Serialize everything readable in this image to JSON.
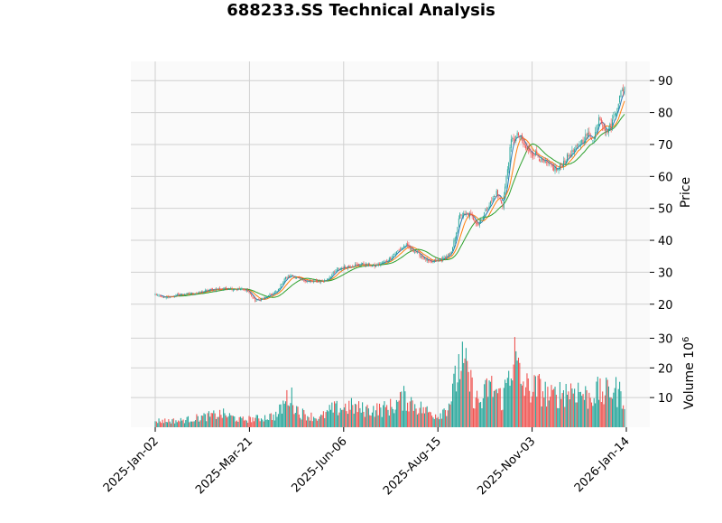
{
  "chart_data": [
    {
      "type": "candlestick",
      "title": "688233.SS Technical Analysis",
      "ylabel": "Price",
      "ylim": [
        14,
        96
      ],
      "yticks": [
        20,
        30,
        40,
        50,
        60,
        70,
        80,
        90
      ],
      "xticks": [
        "2025-Jan-02",
        "2025-Mar-21",
        "2025-Jun-06",
        "2025-Aug-15",
        "2025-Nov-03",
        "2026-Jan-14"
      ],
      "grid": true,
      "up_color": "#26a69a",
      "down_color": "#ef5350",
      "ma_colors": [
        "#1f77b4",
        "#ff7f0e",
        "#2ca02c"
      ],
      "price_keypoints": [
        [
          0,
          23
        ],
        [
          8,
          22
        ],
        [
          20,
          23
        ],
        [
          35,
          23.5
        ],
        [
          45,
          24.5
        ],
        [
          60,
          25
        ],
        [
          75,
          24.5
        ],
        [
          82,
          21
        ],
        [
          90,
          22
        ],
        [
          100,
          24
        ],
        [
          106,
          28
        ],
        [
          112,
          29
        ],
        [
          120,
          27.5
        ],
        [
          130,
          27
        ],
        [
          140,
          27.5
        ],
        [
          150,
          31
        ],
        [
          160,
          32
        ],
        [
          170,
          32.5
        ],
        [
          180,
          32
        ],
        [
          190,
          33.5
        ],
        [
          197,
          36
        ],
        [
          205,
          38.5
        ],
        [
          215,
          36
        ],
        [
          225,
          33
        ],
        [
          235,
          34
        ],
        [
          243,
          36
        ],
        [
          250,
          48
        ],
        [
          258,
          48
        ],
        [
          265,
          45
        ],
        [
          272,
          50
        ],
        [
          280,
          55
        ],
        [
          285,
          51
        ],
        [
          292,
          71
        ],
        [
          298,
          73
        ],
        [
          305,
          68
        ],
        [
          312,
          67
        ],
        [
          320,
          64
        ],
        [
          330,
          62
        ],
        [
          338,
          66
        ],
        [
          346,
          69
        ],
        [
          354,
          73
        ],
        [
          360,
          72
        ],
        [
          364,
          79
        ],
        [
          370,
          74
        ],
        [
          374,
          76
        ],
        [
          378,
          81
        ],
        [
          382,
          86
        ],
        [
          385,
          88
        ]
      ]
    },
    {
      "type": "bar",
      "ylabel": "Volume  10",
      "ylabel_exponent": "6",
      "ylim": [
        0,
        35
      ],
      "yticks": [
        10,
        20,
        30
      ],
      "volume_keypoints": [
        [
          0,
          2.2
        ],
        [
          20,
          2.2
        ],
        [
          40,
          3.5
        ],
        [
          55,
          4.5
        ],
        [
          70,
          2.5
        ],
        [
          85,
          3
        ],
        [
          100,
          4
        ],
        [
          110,
          11
        ],
        [
          118,
          5
        ],
        [
          125,
          4
        ],
        [
          135,
          3
        ],
        [
          145,
          6
        ],
        [
          160,
          7
        ],
        [
          170,
          6
        ],
        [
          185,
          6
        ],
        [
          195,
          7
        ],
        [
          205,
          10
        ],
        [
          215,
          7
        ],
        [
          225,
          5
        ],
        [
          232,
          4
        ],
        [
          240,
          7
        ],
        [
          245,
          13
        ],
        [
          250,
          22
        ],
        [
          256,
          18
        ],
        [
          262,
          10
        ],
        [
          268,
          8
        ],
        [
          273,
          14
        ],
        [
          280,
          12
        ],
        [
          285,
          9
        ],
        [
          290,
          18
        ],
        [
          294,
          25
        ],
        [
          300,
          15
        ],
        [
          306,
          13
        ],
        [
          315,
          13
        ],
        [
          325,
          10
        ],
        [
          335,
          12
        ],
        [
          345,
          13
        ],
        [
          355,
          10
        ],
        [
          362,
          12
        ],
        [
          368,
          11
        ],
        [
          375,
          13
        ],
        [
          385,
          10
        ]
      ]
    }
  ]
}
